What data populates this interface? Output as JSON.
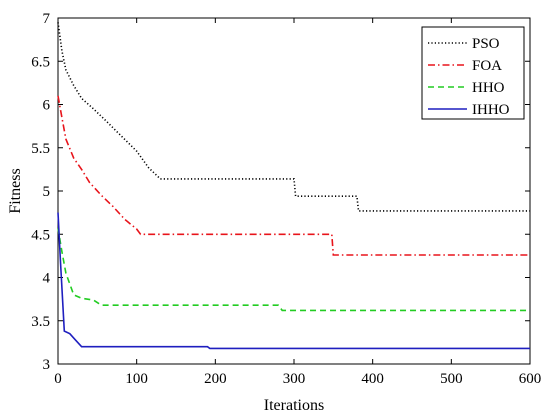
{
  "chart_data": {
    "type": "line",
    "xlabel": "Iterations",
    "ylabel": "Fitness",
    "xlim": [
      0,
      600
    ],
    "ylim": [
      3,
      7
    ],
    "xticks": [
      "0",
      "100",
      "200",
      "300",
      "400",
      "500",
      "600"
    ],
    "yticks": [
      "3",
      "3.5",
      "4",
      "4.5",
      "5",
      "5.5",
      "6",
      "6.5",
      "7"
    ],
    "grid": false,
    "legend_position": "top-right",
    "series": [
      {
        "name": "PSO",
        "color": "#000000",
        "dash": "dotted",
        "points": [
          [
            0,
            6.95
          ],
          [
            5,
            6.62
          ],
          [
            10,
            6.4
          ],
          [
            20,
            6.22
          ],
          [
            30,
            6.07
          ],
          [
            45,
            5.95
          ],
          [
            60,
            5.82
          ],
          [
            80,
            5.64
          ],
          [
            100,
            5.46
          ],
          [
            115,
            5.27
          ],
          [
            130,
            5.14
          ],
          [
            300,
            5.14
          ],
          [
            302,
            4.94
          ],
          [
            380,
            4.94
          ],
          [
            382,
            4.77
          ],
          [
            600,
            4.77
          ]
        ]
      },
      {
        "name": "FOA",
        "color": "#e8141b",
        "dash": "dash-dot",
        "points": [
          [
            0,
            6.1
          ],
          [
            5,
            5.85
          ],
          [
            10,
            5.6
          ],
          [
            20,
            5.38
          ],
          [
            30,
            5.25
          ],
          [
            40,
            5.1
          ],
          [
            55,
            4.95
          ],
          [
            70,
            4.82
          ],
          [
            85,
            4.67
          ],
          [
            100,
            4.56
          ],
          [
            105,
            4.5
          ],
          [
            348,
            4.5
          ],
          [
            350,
            4.26
          ],
          [
            600,
            4.26
          ]
        ]
      },
      {
        "name": "HHO",
        "color": "#22cc22",
        "dash": "dashed",
        "points": [
          [
            0,
            4.57
          ],
          [
            5,
            4.3
          ],
          [
            10,
            4.05
          ],
          [
            20,
            3.8
          ],
          [
            30,
            3.76
          ],
          [
            45,
            3.74
          ],
          [
            55,
            3.68
          ],
          [
            280,
            3.68
          ],
          [
            285,
            3.62
          ],
          [
            600,
            3.62
          ]
        ]
      },
      {
        "name": "IHHO",
        "color": "#1f1fbf",
        "dash": "solid",
        "points": [
          [
            0,
            4.75
          ],
          [
            3,
            4.2
          ],
          [
            8,
            3.38
          ],
          [
            15,
            3.35
          ],
          [
            22,
            3.28
          ],
          [
            30,
            3.2
          ],
          [
            190,
            3.2
          ],
          [
            193,
            3.18
          ],
          [
            600,
            3.18
          ]
        ]
      }
    ]
  }
}
